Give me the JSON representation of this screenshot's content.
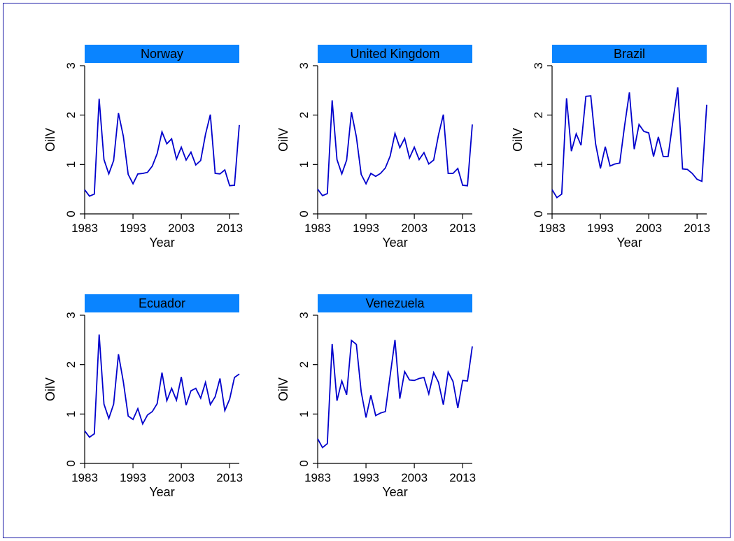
{
  "colors": {
    "strip": "#0a84ff",
    "line": "#0000cc",
    "axis": "#000000",
    "frame": "#1a1aa6"
  },
  "chart_data": [
    {
      "type": "line",
      "title": "Norway",
      "xlabel": "Year",
      "ylabel": "OilV",
      "xlim": [
        1983,
        2015
      ],
      "ylim": [
        0,
        3
      ],
      "xticks": [
        "1983",
        "1993",
        "2003",
        "2013"
      ],
      "yticks": [
        "0",
        "1",
        "2",
        "3"
      ],
      "x": [
        1983,
        1984,
        1985,
        1986,
        1987,
        1988,
        1989,
        1990,
        1991,
        1992,
        1993,
        1994,
        1995,
        1996,
        1997,
        1998,
        1999,
        2000,
        2001,
        2002,
        2003,
        2004,
        2005,
        2006,
        2007,
        2008,
        2009,
        2010,
        2011,
        2012,
        2013,
        2014,
        2015
      ],
      "y": [
        0.49,
        0.36,
        0.4,
        2.33,
        1.1,
        0.81,
        1.08,
        2.04,
        1.57,
        0.8,
        0.61,
        0.81,
        0.82,
        0.84,
        0.97,
        1.22,
        1.66,
        1.42,
        1.52,
        1.11,
        1.35,
        1.09,
        1.25,
        0.99,
        1.08,
        1.61,
        2.01,
        0.82,
        0.81,
        0.89,
        0.57,
        0.58,
        1.8
      ]
    },
    {
      "type": "line",
      "title": "United Kingdom",
      "xlabel": "Year",
      "ylabel": "OilV",
      "xlim": [
        1983,
        2015
      ],
      "ylim": [
        0,
        3
      ],
      "xticks": [
        "1983",
        "1993",
        "2003",
        "2013"
      ],
      "yticks": [
        "0",
        "1",
        "2",
        "3"
      ],
      "x": [
        1983,
        1984,
        1985,
        1986,
        1987,
        1988,
        1989,
        1990,
        1991,
        1992,
        1993,
        1994,
        1995,
        1996,
        1997,
        1998,
        1999,
        2000,
        2001,
        2002,
        2003,
        2004,
        2005,
        2006,
        2007,
        2008,
        2009,
        2010,
        2011,
        2012,
        2013,
        2014,
        2015
      ],
      "y": [
        0.5,
        0.37,
        0.41,
        2.3,
        1.1,
        0.81,
        1.09,
        2.06,
        1.56,
        0.8,
        0.61,
        0.82,
        0.76,
        0.82,
        0.93,
        1.17,
        1.63,
        1.34,
        1.53,
        1.13,
        1.35,
        1.1,
        1.24,
        1.01,
        1.09,
        1.6,
        2.01,
        0.82,
        0.82,
        0.92,
        0.58,
        0.57,
        1.81
      ]
    },
    {
      "type": "line",
      "title": "Brazil",
      "xlabel": "Year",
      "ylabel": "OilV",
      "xlim": [
        1983,
        2015
      ],
      "ylim": [
        0,
        3
      ],
      "xticks": [
        "1983",
        "1993",
        "2003",
        "2013"
      ],
      "yticks": [
        "0",
        "1",
        "2",
        "3"
      ],
      "x": [
        1983,
        1984,
        1985,
        1986,
        1987,
        1988,
        1989,
        1990,
        1991,
        1992,
        1993,
        1994,
        1995,
        1996,
        1997,
        1998,
        1999,
        2000,
        2001,
        2002,
        2003,
        2004,
        2005,
        2006,
        2007,
        2008,
        2009,
        2010,
        2011,
        2012,
        2013,
        2014,
        2015
      ],
      "y": [
        0.49,
        0.33,
        0.4,
        2.34,
        1.27,
        1.62,
        1.39,
        2.38,
        2.39,
        1.42,
        0.92,
        1.36,
        0.97,
        1.01,
        1.03,
        1.78,
        2.46,
        1.31,
        1.81,
        1.67,
        1.64,
        1.16,
        1.56,
        1.16,
        1.16,
        1.88,
        2.56,
        0.91,
        0.9,
        0.82,
        0.7,
        0.66,
        2.21
      ]
    },
    {
      "type": "line",
      "title": "Ecuador",
      "xlabel": "Year",
      "ylabel": "OilV",
      "xlim": [
        1983,
        2015
      ],
      "ylim": [
        0,
        3
      ],
      "xticks": [
        "1983",
        "1993",
        "2003",
        "2013"
      ],
      "yticks": [
        "0",
        "1",
        "2",
        "3"
      ],
      "x": [
        1983,
        1984,
        1985,
        1986,
        1987,
        1988,
        1989,
        1990,
        1991,
        1992,
        1993,
        1994,
        1995,
        1996,
        1997,
        1998,
        1999,
        2000,
        2001,
        2002,
        2003,
        2004,
        2005,
        2006,
        2007,
        2008,
        2009,
        2010,
        2011,
        2012,
        2013,
        2014,
        2015
      ],
      "y": [
        0.66,
        0.53,
        0.6,
        2.61,
        1.2,
        0.91,
        1.2,
        2.21,
        1.65,
        0.96,
        0.89,
        1.11,
        0.8,
        0.98,
        1.05,
        1.21,
        1.84,
        1.27,
        1.52,
        1.28,
        1.75,
        1.18,
        1.47,
        1.52,
        1.32,
        1.64,
        1.19,
        1.35,
        1.72,
        1.07,
        1.3,
        1.74,
        1.81
      ]
    },
    {
      "type": "line",
      "title": "Venezuela",
      "xlabel": "Year",
      "ylabel": "OilV",
      "xlim": [
        1983,
        2015
      ],
      "ylim": [
        0,
        3
      ],
      "xticks": [
        "1983",
        "1993",
        "2003",
        "2013"
      ],
      "yticks": [
        "0",
        "1",
        "2",
        "3"
      ],
      "x": [
        1983,
        1984,
        1985,
        1986,
        1987,
        1988,
        1989,
        1990,
        1991,
        1992,
        1993,
        1994,
        1995,
        1996,
        1997,
        1998,
        1999,
        2000,
        2001,
        2002,
        2003,
        2004,
        2005,
        2006,
        2007,
        2008,
        2009,
        2010,
        2011,
        2012,
        2013,
        2014,
        2015
      ],
      "y": [
        0.5,
        0.32,
        0.4,
        2.42,
        1.27,
        1.67,
        1.39,
        2.49,
        2.41,
        1.45,
        0.93,
        1.38,
        0.97,
        1.02,
        1.05,
        1.78,
        2.5,
        1.31,
        1.86,
        1.69,
        1.68,
        1.72,
        1.74,
        1.41,
        1.84,
        1.64,
        1.19,
        1.85,
        1.66,
        1.12,
        1.68,
        1.67,
        2.37
      ]
    }
  ]
}
